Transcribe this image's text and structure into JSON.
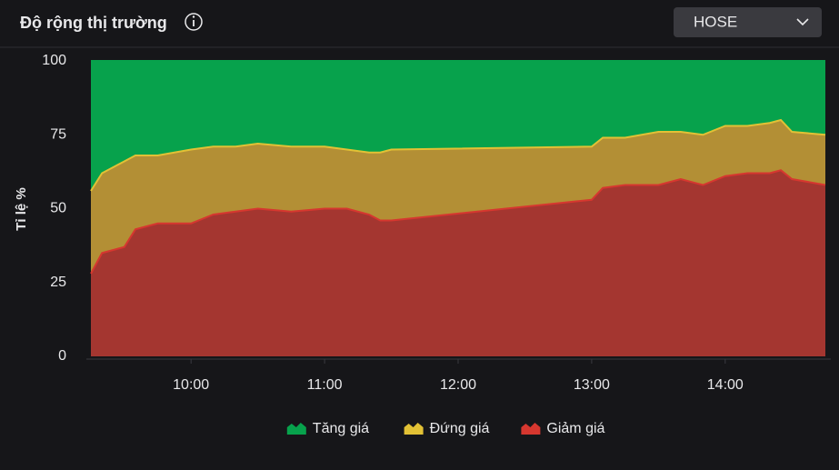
{
  "exchange_selector": "HOSE",
  "chart_data": {
    "type": "area",
    "stacked": true,
    "title": "Độ rộng thị trường",
    "y_label": "Tỉ lệ %",
    "x": [
      "09:15",
      "09:20",
      "09:30",
      "09:35",
      "09:45",
      "10:00",
      "10:10",
      "10:20",
      "10:30",
      "10:45",
      "11:00",
      "11:10",
      "11:20",
      "11:25",
      "11:30",
      "13:00",
      "13:05",
      "13:15",
      "13:30",
      "13:40",
      "13:50",
      "14:00",
      "14:10",
      "14:20",
      "14:25",
      "14:30",
      "14:45"
    ],
    "xlim": [
      "09:15",
      "14:45"
    ],
    "xticks": [
      "10:00",
      "11:00",
      "12:00",
      "13:00",
      "14:00"
    ],
    "ylim": [
      0,
      100
    ],
    "yticks": [
      0,
      25,
      50,
      75,
      100
    ],
    "grid": false,
    "legend": "bottom",
    "series": [
      {
        "name": "Tăng giá",
        "color": "#07a24c",
        "line_color": "#07a24c",
        "values": [
          44,
          38,
          34,
          32,
          32,
          30,
          29,
          29,
          28,
          29,
          29,
          30,
          31,
          31,
          30,
          29,
          26,
          26,
          24,
          24,
          25,
          22,
          22,
          21,
          20,
          24,
          25
        ]
      },
      {
        "name": "Đứng giá",
        "color": "#b38f35",
        "line_color": "#e2c135",
        "values": [
          28,
          27,
          29,
          25,
          23,
          25,
          23,
          22,
          22,
          22,
          21,
          20,
          21,
          23,
          24,
          18,
          17,
          16,
          18,
          16,
          17,
          17,
          16,
          17,
          17,
          16,
          17
        ]
      },
      {
        "name": "Giảm giá",
        "color": "#a43630",
        "line_color": "#d6372f",
        "values": [
          28,
          35,
          37,
          43,
          45,
          45,
          48,
          49,
          50,
          49,
          50,
          50,
          48,
          46,
          46,
          53,
          57,
          58,
          58,
          60,
          58,
          61,
          62,
          62,
          63,
          60,
          58
        ]
      }
    ]
  }
}
